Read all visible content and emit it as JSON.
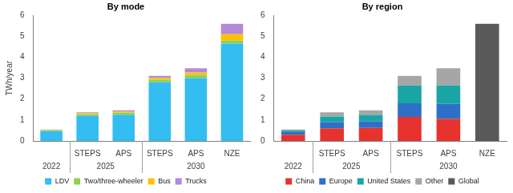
{
  "chart_data": [
    {
      "type": "bar",
      "title": "By mode",
      "y_label": "TWh/year",
      "categories": [
        null,
        "STEPS",
        "APS",
        "STEPS",
        "APS",
        "NZE"
      ],
      "groups": [
        "2022",
        "2025",
        "2025",
        "2030",
        "2030",
        "2030"
      ],
      "series": [
        {
          "name": "LDV",
          "color": "#33bdf0",
          "values": [
            0.47,
            1.2,
            1.25,
            2.8,
            3.0,
            4.65
          ]
        },
        {
          "name": "Two/three-wheeler",
          "color": "#92d050",
          "values": [
            0.05,
            0.08,
            0.1,
            0.13,
            0.15,
            0.15
          ]
        },
        {
          "name": "Bus",
          "color": "#ffc000",
          "values": [
            0.02,
            0.05,
            0.06,
            0.08,
            0.12,
            0.3
          ]
        },
        {
          "name": "Trucks",
          "color": "#b28ad9",
          "values": [
            0.01,
            0.04,
            0.05,
            0.1,
            0.2,
            0.5
          ]
        }
      ],
      "ylim": [
        0,
        6
      ],
      "yticks": [
        0,
        1,
        2,
        3,
        4,
        5,
        6
      ],
      "stacked": true,
      "grid": false,
      "legend": "bottom"
    },
    {
      "type": "bar",
      "title": "By region",
      "categories": [
        null,
        "STEPS",
        "APS",
        "STEPS",
        "APS",
        "NZE"
      ],
      "groups": [
        "2022",
        "2025",
        "2025",
        "2030",
        "2030",
        "2030"
      ],
      "series": [
        {
          "name": "China",
          "color": "#e8322e",
          "values": [
            0.3,
            0.6,
            0.62,
            1.15,
            1.05,
            null
          ]
        },
        {
          "name": "Europe",
          "color": "#2e6fc8",
          "values": [
            0.13,
            0.3,
            0.32,
            0.65,
            0.72,
            null
          ]
        },
        {
          "name": "United States",
          "color": "#1aa5a5",
          "values": [
            0.07,
            0.27,
            0.3,
            0.85,
            0.88,
            null
          ]
        },
        {
          "name": "Other",
          "color": "#a6a6a6",
          "values": [
            0.05,
            0.2,
            0.22,
            0.46,
            0.82,
            null
          ]
        },
        {
          "name": "Global",
          "color": "#595959",
          "values": [
            null,
            null,
            null,
            null,
            null,
            5.6
          ]
        }
      ],
      "ylim": [
        0,
        6
      ],
      "yticks": [
        0,
        1,
        2,
        3,
        4,
        5,
        6
      ],
      "stacked": true,
      "grid": false,
      "legend": "bottom"
    }
  ]
}
